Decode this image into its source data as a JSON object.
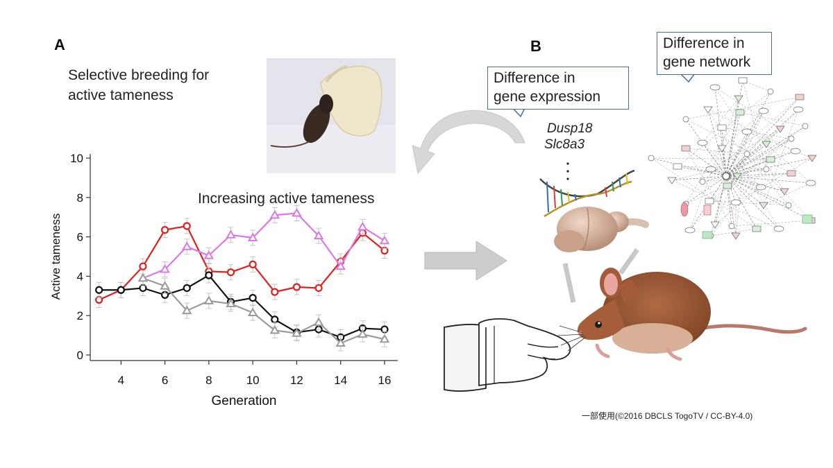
{
  "panels": {
    "a": "A",
    "b": "B"
  },
  "text": {
    "breeding_line1": "Selective breeding for",
    "breeding_line2": "active tameness",
    "increasing": "Increasing active tameness",
    "callout_expression_line1": "Difference in",
    "callout_expression_line2": "gene expression",
    "callout_network_line1": "Difference in",
    "callout_network_line2": "gene network",
    "gene1": "Dusp18",
    "gene2": "Slc8a3",
    "credit": "一部使用(©2016 DBCLS TogoTV / CC-BY-4.0)"
  },
  "chart_data": {
    "type": "line",
    "xlabel": "Generation",
    "ylabel": "Active tameness",
    "xlim": [
      2.6,
      16.6
    ],
    "ylim": [
      0,
      10
    ],
    "xticks": [
      4,
      6,
      8,
      10,
      12,
      14,
      16
    ],
    "yticks": [
      0,
      2,
      4,
      6,
      8,
      10
    ],
    "series": [
      {
        "color": "#e0201c",
        "marker": "circle",
        "x": [
          3,
          4,
          5,
          6,
          7,
          8,
          9,
          10,
          11,
          12,
          13,
          14,
          15,
          16
        ],
        "y": [
          2.8,
          3.3,
          4.5,
          6.35,
          6.55,
          4.25,
          4.2,
          4.6,
          3.2,
          3.45,
          3.4,
          4.75,
          6.2,
          5.3
        ]
      },
      {
        "color": "#dc78e6",
        "marker": "triangle",
        "x": [
          5,
          6,
          7,
          8,
          9,
          10,
          11,
          12,
          13,
          14,
          15,
          16
        ],
        "y": [
          3.9,
          4.35,
          5.5,
          5.05,
          6.1,
          5.95,
          7.1,
          7.2,
          6.05,
          4.5,
          6.5,
          5.8
        ]
      },
      {
        "color": "#111111",
        "marker": "circle",
        "x": [
          3,
          4,
          5,
          6,
          7,
          8,
          9,
          10,
          11,
          12,
          13,
          14,
          15,
          16
        ],
        "y": [
          3.3,
          3.3,
          3.4,
          3.05,
          3.4,
          4.05,
          2.7,
          2.9,
          1.8,
          1.15,
          1.3,
          0.9,
          1.35,
          1.3
        ]
      },
      {
        "color": "#9a9a9a",
        "marker": "triangle",
        "x": [
          5,
          6,
          7,
          8,
          9,
          10,
          11,
          12,
          13,
          14,
          15,
          16
        ],
        "y": [
          3.9,
          3.5,
          2.25,
          2.75,
          2.6,
          2.15,
          1.25,
          1.1,
          1.65,
          0.6,
          1.05,
          0.8
        ]
      }
    ]
  }
}
